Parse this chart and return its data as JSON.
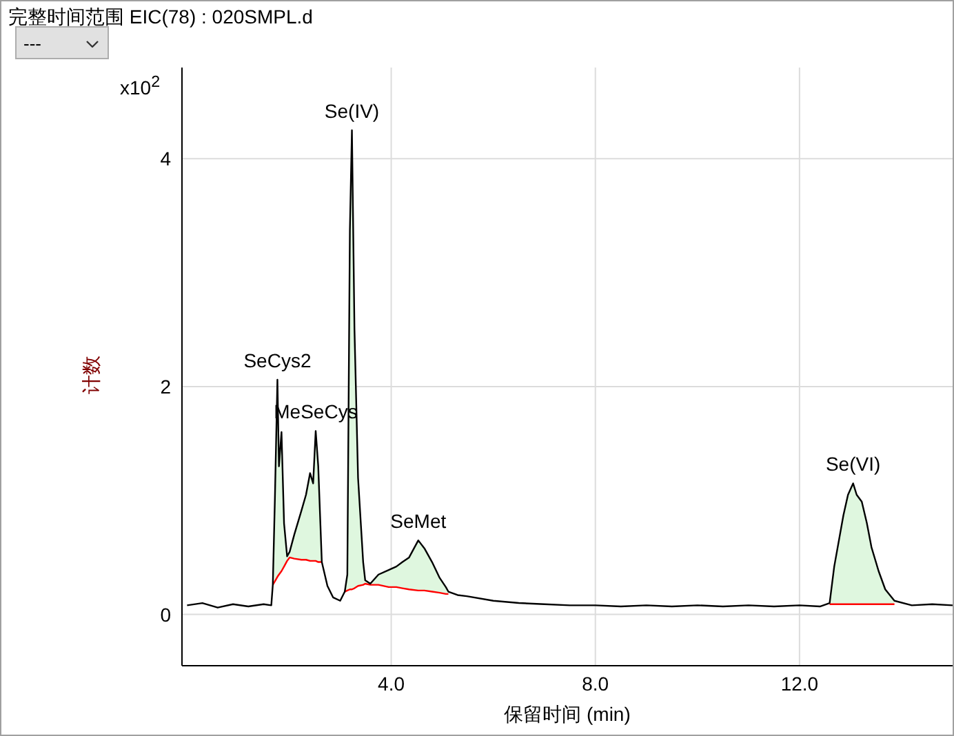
{
  "chart_data": {
    "type": "line",
    "title": "完整时间范围 EIC(78) : 020SMPL.d",
    "xlabel": "保留时间 (min)",
    "ylabel": "计数",
    "annotations": [
      "---",
      "x10$^{2}$",
      {
        "text": "SeCys2",
        "x": 1.77,
        "y": 2.06
      },
      {
        "text": "MeSeCys",
        "x": 2.52,
        "y": 1.61
      },
      {
        "text": "Se(IV)",
        "x": 3.23,
        "y": 4.25
      },
      {
        "text": "SeMet",
        "x": 4.53,
        "y": 0.65
      },
      {
        "text": "Se(VI)",
        "x": 13.05,
        "y": 1.15
      }
    ],
    "xlim": [
      -0.1,
      15.0
    ],
    "xticks": [
      {
        "value": 4,
        "label": "4.0"
      },
      {
        "value": 8,
        "label": "8.0"
      },
      {
        "value": 12,
        "label": "12.0"
      }
    ],
    "ylim": [
      -0.45,
      4.8
    ],
    "yticks": [
      0,
      2,
      4
    ],
    "grid": true,
    "marker": "none",
    "line_style": "solid",
    "series": [
      {
        "color": "#dff7df",
        "x": [
          1.68,
          1.72,
          1.77,
          1.8,
          1.85,
          1.9,
          1.96,
          2.01,
          2.1,
          2.24,
          2.33,
          2.41,
          2.47,
          2.52,
          2.57,
          2.64,
          2.75,
          3.09,
          3.14,
          3.19,
          3.23,
          3.28,
          3.35,
          3.45,
          3.49,
          3.59,
          3.75,
          3.95,
          4.1,
          4.22,
          4.35,
          4.53,
          4.65,
          4.8,
          4.95,
          5.07,
          5.12,
          9,
          12.59,
          12.68,
          12.86,
          12.95,
          13.05,
          13.12,
          13.22,
          13.32,
          13.41,
          13.55,
          13.68,
          13.86
        ],
        "values": [
          0.26,
          1.0,
          2.06,
          1.3,
          1.6,
          0.8,
          0.51,
          0.55,
          0.7,
          0.91,
          1.05,
          1.24,
          1.15,
          1.61,
          1.3,
          0.46,
          null,
          0.2,
          0.35,
          3.37,
          4.25,
          2.5,
          1.2,
          0.46,
          0.3,
          0.27,
          0.35,
          0.39,
          0.42,
          0.46,
          0.5,
          0.65,
          0.58,
          0.46,
          0.32,
          0.24,
          0.2,
          null,
          0.1,
          0.42,
          0.87,
          1.05,
          1.15,
          1.05,
          0.99,
          0.8,
          0.59,
          0.38,
          0.22,
          0.12
        ],
        "type": "area"
      },
      {
        "type": "line",
        "color": "#ff0000",
        "x": [
          1.68,
          1.72,
          1.77,
          1.8,
          1.85,
          1.9,
          1.96,
          2.01,
          2.1,
          2.24,
          2.33,
          2.41,
          2.47,
          2.52,
          2.57,
          2.64,
          2.75,
          3.09,
          3.14,
          3.19,
          3.23,
          3.28,
          3.35,
          3.45,
          3.49,
          3.59,
          3.75,
          3.95,
          4.1,
          4.22,
          4.35,
          4.53,
          4.65,
          4.8,
          4.95,
          5.07,
          5.12,
          9,
          12.59,
          12.68,
          12.86,
          12.95,
          13.05,
          13.12,
          13.22,
          13.32,
          13.41,
          13.55,
          13.68,
          13.86
        ],
        "values": [
          0.26,
          0.29,
          0.33,
          0.35,
          0.38,
          0.42,
          0.47,
          0.5,
          0.49,
          0.48,
          0.48,
          0.47,
          0.47,
          0.47,
          0.46,
          0.46,
          null,
          0.2,
          0.21,
          0.22,
          0.22,
          0.23,
          0.25,
          0.26,
          0.27,
          0.26,
          0.26,
          0.24,
          0.24,
          0.23,
          0.22,
          0.21,
          0.21,
          0.2,
          0.19,
          0.18,
          0.18,
          null,
          0.09,
          0.09,
          0.09,
          0.09,
          0.09,
          0.09,
          0.09,
          0.09,
          0.09,
          0.09,
          0.09,
          0.09
        ]
      },
      {
        "color": "#000000",
        "x": [
          0,
          0.3,
          0.6,
          0.9,
          1.2,
          1.5,
          1.65,
          1.68,
          1.72,
          1.77,
          1.8,
          1.85,
          1.9,
          1.96,
          2.01,
          2.1,
          2.24,
          2.33,
          2.41,
          2.47,
          2.52,
          2.57,
          2.64,
          2.75,
          2.86,
          3.0,
          3.09,
          3.14,
          3.19,
          3.23,
          3.28,
          3.35,
          3.45,
          3.49,
          3.59,
          3.75,
          3.95,
          4.1,
          4.22,
          4.35,
          4.53,
          4.65,
          4.8,
          4.95,
          5.07,
          5.12,
          5.3,
          5.48,
          6.0,
          6.5,
          7.0,
          7.5,
          8.0,
          8.5,
          9.0,
          9.5,
          10.0,
          10.5,
          11.0,
          11.5,
          12.0,
          12.4,
          12.59,
          12.68,
          12.86,
          12.95,
          13.05,
          13.12,
          13.22,
          13.32,
          13.41,
          13.55,
          13.68,
          13.86,
          14.2,
          14.6,
          15.0
        ],
        "values": [
          0.08,
          0.1,
          0.06,
          0.09,
          0.07,
          0.09,
          0.08,
          0.26,
          1.0,
          2.06,
          1.3,
          1.6,
          0.8,
          0.51,
          0.55,
          0.7,
          0.91,
          1.05,
          1.24,
          1.15,
          1.61,
          1.3,
          0.46,
          0.25,
          0.15,
          0.12,
          0.2,
          0.35,
          3.37,
          4.25,
          2.5,
          1.2,
          0.46,
          0.3,
          0.27,
          0.35,
          0.39,
          0.42,
          0.46,
          0.5,
          0.65,
          0.58,
          0.46,
          0.32,
          0.24,
          0.2,
          0.17,
          0.16,
          0.12,
          0.1,
          0.09,
          0.08,
          0.08,
          0.07,
          0.08,
          0.07,
          0.08,
          0.07,
          0.08,
          0.07,
          0.08,
          0.07,
          0.1,
          0.42,
          0.87,
          1.05,
          1.15,
          1.05,
          0.99,
          0.8,
          0.59,
          0.38,
          0.22,
          0.12,
          0.08,
          0.09,
          0.08
        ]
      }
    ]
  }
}
